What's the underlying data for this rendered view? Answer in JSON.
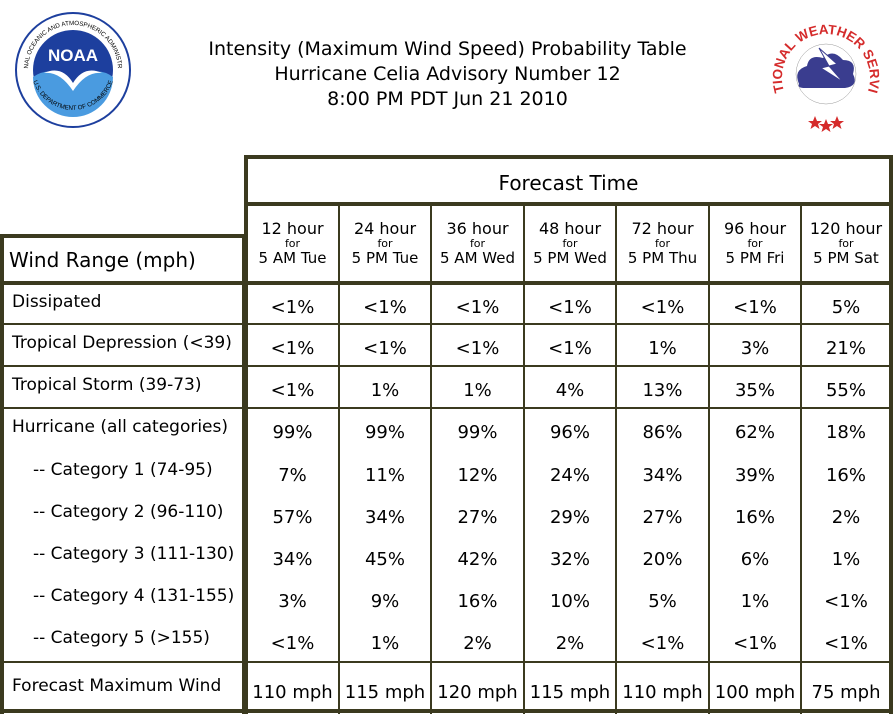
{
  "title": {
    "line1": "Intensity (Maximum Wind Speed) Probability Table",
    "line2": "Hurricane Celia Advisory Number 12",
    "line3": "8:00 PM PDT Jun 21 2010"
  },
  "logos": {
    "noaa_text": "NOAA",
    "noaa_ring_top": "NATIONAL OCEANIC AND ATMOSPHERIC ADMINISTRATION",
    "noaa_ring_bottom": "U.S. DEPARTMENT OF COMMERCE",
    "nws_ring": "NATIONAL WEATHER SERVICE"
  },
  "colors": {
    "border": "#3b3a1f",
    "noaa_blue": "#1d3f9e",
    "noaa_light": "#4a9be0",
    "nws_red": "#d52b2b",
    "nws_cloud": "#3a3d8f"
  },
  "chart_data": {
    "type": "table",
    "forecast_time_label": "Forecast Time",
    "row_header_label": "Wind Range (mph)",
    "columns": [
      {
        "hours": "12 hour",
        "for": "for",
        "time": "5 AM Tue"
      },
      {
        "hours": "24 hour",
        "for": "for",
        "time": "5 PM Tue"
      },
      {
        "hours": "36 hour",
        "for": "for",
        "time": "5 AM Wed"
      },
      {
        "hours": "48 hour",
        "for": "for",
        "time": "5 PM Wed"
      },
      {
        "hours": "72 hour",
        "for": "for",
        "time": "5 PM Thu"
      },
      {
        "hours": "96 hour",
        "for": "for",
        "time": "5 PM Fri"
      },
      {
        "hours": "120 hour",
        "for": "for",
        "time": "5 PM Sat"
      }
    ],
    "rows": [
      {
        "label": "Dissipated",
        "values": [
          "<1%",
          "<1%",
          "<1%",
          "<1%",
          "<1%",
          "<1%",
          "5%"
        ]
      },
      {
        "label": "Tropical Depression (<39)",
        "values": [
          "<1%",
          "<1%",
          "<1%",
          "<1%",
          "1%",
          "3%",
          "21%"
        ]
      },
      {
        "label": "Tropical Storm (39-73)",
        "values": [
          "<1%",
          "1%",
          "1%",
          "4%",
          "13%",
          "35%",
          "55%"
        ]
      },
      {
        "label": "Hurricane (all categories)",
        "values": [
          "99%",
          "99%",
          "99%",
          "96%",
          "86%",
          "62%",
          "18%"
        ]
      },
      {
        "label": "-- Category 1 (74-95)",
        "values": [
          "7%",
          "11%",
          "12%",
          "24%",
          "34%",
          "39%",
          "16%"
        ]
      },
      {
        "label": "-- Category 2 (96-110)",
        "values": [
          "57%",
          "34%",
          "27%",
          "29%",
          "27%",
          "16%",
          "2%"
        ]
      },
      {
        "label": "-- Category 3 (111-130)",
        "values": [
          "34%",
          "45%",
          "42%",
          "32%",
          "20%",
          "6%",
          "1%"
        ]
      },
      {
        "label": "-- Category 4 (131-155)",
        "values": [
          "3%",
          "9%",
          "16%",
          "10%",
          "5%",
          "1%",
          "<1%"
        ]
      },
      {
        "label": "-- Category 5 (>155)",
        "values": [
          "<1%",
          "1%",
          "2%",
          "2%",
          "<1%",
          "<1%",
          "<1%"
        ]
      },
      {
        "label": "Forecast Maximum Wind",
        "values": [
          "110 mph",
          "115 mph",
          "120 mph",
          "115 mph",
          "110 mph",
          "100 mph",
          "75 mph"
        ]
      }
    ]
  }
}
